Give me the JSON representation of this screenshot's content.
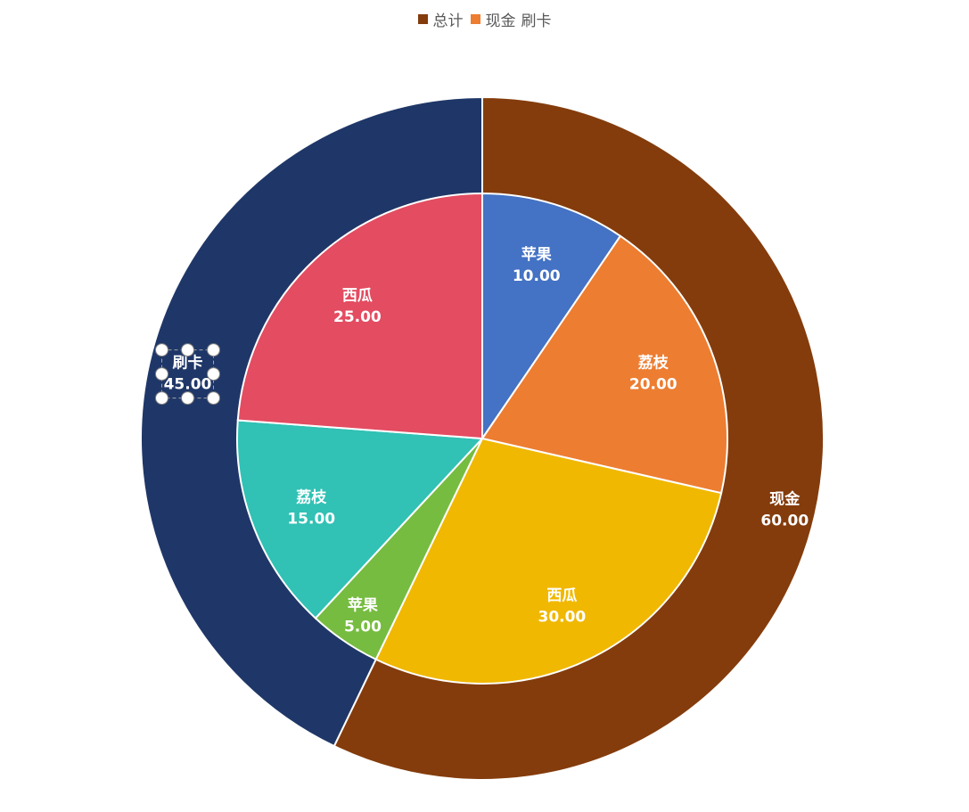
{
  "legend": {
    "items": [
      {
        "label": "总计",
        "color": "#843C0C"
      },
      {
        "label": "现金",
        "color": "#ED7D31"
      }
    ],
    "extra_label": "刷卡"
  },
  "chart_data": {
    "type": "pie",
    "subtype": "double-doughnut",
    "title": "",
    "outer_ring": {
      "categories": [
        "现金",
        "刷卡"
      ],
      "values": [
        60,
        45
      ],
      "colors": [
        "#843C0C",
        "#1F3768"
      ],
      "value_format": "0.00"
    },
    "inner_pie": {
      "categories": [
        "苹果",
        "荔枝",
        "西瓜",
        "苹果",
        "荔枝",
        "西瓜"
      ],
      "values": [
        10,
        20,
        30,
        5,
        15,
        25
      ],
      "colors": [
        "#4472C4",
        "#ED7D31",
        "#F0B800",
        "#76BC40",
        "#31C1B5",
        "#E34C61"
      ],
      "value_format": "0.00"
    },
    "selected_label": "刷卡"
  }
}
